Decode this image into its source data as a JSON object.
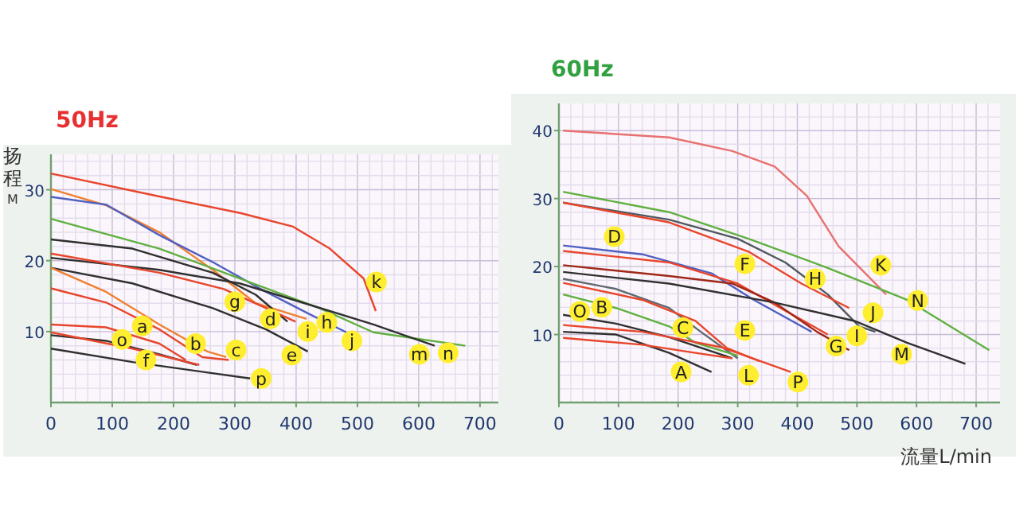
{
  "chart_data": [
    {
      "type": "line",
      "title": "50Hz",
      "ylabel": "扬程$_{M}$",
      "xlim": [
        0,
        730
      ],
      "ylim": [
        0,
        35
      ],
      "xticks": [
        0,
        100,
        200,
        300,
        400,
        500,
        600,
        700
      ],
      "yticks": [
        10,
        20,
        30
      ],
      "grid": true,
      "series": [
        {
          "color": "#e8452c",
          "x": [
            0,
            180,
            310,
            395,
            455,
            510,
            530
          ],
          "values": [
            32.3,
            29,
            26.7,
            24.8,
            21.7,
            17.5,
            12.9
          ]
        },
        {
          "color": "#f08030",
          "x": [
            0,
            90,
            177,
            264,
            334,
            417
          ],
          "values": [
            30.1,
            27.8,
            24,
            18.7,
            14,
            11.8
          ]
        },
        {
          "color": "#5060c0",
          "x": [
            0,
            90,
            177,
            264,
            351,
            421,
            482
          ],
          "values": [
            29,
            27.9,
            23.6,
            19.8,
            15.6,
            12.5,
            9.9
          ]
        },
        {
          "color": "#60b040",
          "x": [
            0,
            177,
            308,
            438,
            526,
            676
          ],
          "values": [
            25.9,
            21.7,
            17.5,
            13.3,
            9.9,
            8
          ]
        },
        {
          "color": "#303030",
          "x": [
            0,
            133,
            264,
            334,
            386
          ],
          "values": [
            23,
            21.7,
            18.3,
            15.2,
            11.4
          ]
        },
        {
          "color": "#303030",
          "x": [
            0,
            177,
            308,
            395,
            526,
            626
          ],
          "values": [
            20.4,
            18.7,
            16.8,
            14.5,
            11,
            8
          ]
        },
        {
          "color": "#e8452c",
          "x": [
            0,
            177,
            282,
            351,
            399
          ],
          "values": [
            21,
            18.3,
            16,
            13.3,
            11.4
          ]
        },
        {
          "color": "#303030",
          "x": [
            0,
            133,
            264,
            351,
            419
          ],
          "values": [
            19,
            16.8,
            13.3,
            10.3,
            7.2
          ]
        },
        {
          "color": "#e8452c",
          "x": [
            0,
            90,
            177,
            247,
            290
          ],
          "values": [
            16.1,
            14.1,
            10.3,
            6.4,
            6
          ]
        },
        {
          "color": "#f08030",
          "x": [
            0,
            90,
            177,
            255,
            286
          ],
          "values": [
            19,
            15.6,
            11,
            7.2,
            6.4
          ]
        },
        {
          "color": "#e8452c",
          "x": [
            0,
            90,
            177,
            220
          ],
          "values": [
            11,
            10.6,
            8.3,
            6
          ]
        },
        {
          "color": "#303030",
          "x": [
            0,
            90,
            177,
            238
          ],
          "values": [
            9.5,
            8.7,
            6.8,
            5.3
          ]
        },
        {
          "color": "#e8452c",
          "x": [
            0,
            133,
            242
          ],
          "values": [
            9.9,
            7.6,
            5.3
          ]
        },
        {
          "color": "#303030",
          "x": [
            0,
            133,
            325
          ],
          "values": [
            7.6,
            5.7,
            3.4
          ]
        }
      ],
      "annotations": [
        {
          "text": "a",
          "x": 149,
          "y": 10.8
        },
        {
          "text": "b",
          "x": 236,
          "y": 8.3
        },
        {
          "text": "c",
          "x": 302,
          "y": 7.4
        },
        {
          "text": "d",
          "x": 358,
          "y": 11.8
        },
        {
          "text": "e",
          "x": 393,
          "y": 6.7
        },
        {
          "text": "f",
          "x": 155,
          "y": 6
        },
        {
          "text": "g",
          "x": 300,
          "y": 14.2
        },
        {
          "text": "h",
          "x": 450,
          "y": 11.3
        },
        {
          "text": "i",
          "x": 419,
          "y": 10
        },
        {
          "text": "j",
          "x": 491,
          "y": 8.7
        },
        {
          "text": "k",
          "x": 531,
          "y": 17
        },
        {
          "text": "m",
          "x": 601,
          "y": 6.8
        },
        {
          "text": "n",
          "x": 648,
          "y": 7
        },
        {
          "text": "o",
          "x": 116,
          "y": 8.9
        },
        {
          "text": "p",
          "x": 343,
          "y": 3.4
        }
      ]
    },
    {
      "type": "line",
      "title": "60Hz",
      "xlabel": "流量L/min",
      "xlim": [
        0,
        740
      ],
      "ylim": [
        0,
        44
      ],
      "xticks": [
        0,
        100,
        200,
        300,
        400,
        500,
        600,
        700
      ],
      "yticks": [
        10,
        20,
        30,
        40
      ],
      "grid": true,
      "series": [
        {
          "color": "#e87070",
          "x": [
            7,
            185,
            291,
            362,
            416,
            469,
            549
          ],
          "values": [
            40,
            39,
            37,
            34.7,
            30.4,
            23,
            15.9
          ]
        },
        {
          "color": "#60b040",
          "x": [
            7,
            185,
            318,
            451,
            584,
            722
          ],
          "values": [
            31,
            28,
            24.1,
            19.8,
            15.1,
            7.7
          ]
        },
        {
          "color": "#505860",
          "x": [
            7,
            185,
            300,
            380,
            451,
            504,
            531
          ],
          "values": [
            29.4,
            26.9,
            24.1,
            20.6,
            15.9,
            11.2,
            10.4
          ]
        },
        {
          "color": "#e8452c",
          "x": [
            7,
            185,
            318,
            407,
            487
          ],
          "values": [
            29.4,
            26.5,
            22.2,
            17.5,
            13.9
          ]
        },
        {
          "color": "#5060c0",
          "x": [
            7,
            140,
            256,
            327,
            424
          ],
          "values": [
            23.1,
            21.8,
            19,
            15.1,
            10.4
          ]
        },
        {
          "color": "#e8452c",
          "x": [
            7,
            185,
            300,
            380,
            451
          ],
          "values": [
            22.3,
            20.6,
            17.5,
            13.5,
            10
          ]
        },
        {
          "color": "#a02818",
          "x": [
            7,
            185,
            291,
            362,
            433,
            487
          ],
          "values": [
            20.2,
            18.6,
            17.5,
            14.7,
            10.4,
            7.7
          ]
        },
        {
          "color": "#303030",
          "x": [
            7,
            185,
            362,
            496,
            584,
            682
          ],
          "values": [
            19.2,
            17.5,
            14.7,
            12,
            8.8,
            5.7
          ]
        },
        {
          "color": "#606870",
          "x": [
            7,
            96,
            185,
            238,
            300
          ],
          "values": [
            18.2,
            16.7,
            13.9,
            10.4,
            6.5
          ]
        },
        {
          "color": "#e8452c",
          "x": [
            7,
            140,
            229,
            282,
            336
          ],
          "values": [
            17.6,
            15.1,
            12,
            8,
            6.1
          ]
        },
        {
          "color": "#60b040",
          "x": [
            7,
            96,
            185,
            229,
            300
          ],
          "values": [
            15.9,
            13.9,
            11.2,
            8.8,
            6.9
          ]
        },
        {
          "color": "#303030",
          "x": [
            7,
            96,
            185,
            291
          ],
          "values": [
            12.9,
            11.6,
            9.6,
            6.5
          ]
        },
        {
          "color": "#e8452c",
          "x": [
            7,
            140,
            274,
            389
          ],
          "values": [
            11.4,
            10.4,
            8.1,
            4.5
          ]
        },
        {
          "color": "#303030",
          "x": [
            7,
            96,
            185,
            256
          ],
          "values": [
            10.4,
            10,
            7.3,
            4.5
          ]
        },
        {
          "color": "#e8452c",
          "x": [
            7,
            140,
            229,
            291
          ],
          "values": [
            9.5,
            8.5,
            7.3,
            6.5
          ]
        }
      ],
      "annotations": [
        {
          "text": "A",
          "x": 205,
          "y": 4.5
        },
        {
          "text": "B",
          "x": 72,
          "y": 14
        },
        {
          "text": "C",
          "x": 208,
          "y": 11
        },
        {
          "text": "D",
          "x": 93,
          "y": 24.4
        },
        {
          "text": "E",
          "x": 312,
          "y": 10.6
        },
        {
          "text": "F",
          "x": 312,
          "y": 20.4
        },
        {
          "text": "G",
          "x": 465,
          "y": 8.3
        },
        {
          "text": "H",
          "x": 430,
          "y": 18.2
        },
        {
          "text": "I",
          "x": 500,
          "y": 9.8
        },
        {
          "text": "J",
          "x": 527,
          "y": 13.2
        },
        {
          "text": "K",
          "x": 540,
          "y": 20.2
        },
        {
          "text": "L",
          "x": 318,
          "y": 4
        },
        {
          "text": "M",
          "x": 575,
          "y": 7.1
        },
        {
          "text": "N",
          "x": 602,
          "y": 15
        },
        {
          "text": "O",
          "x": 35,
          "y": 13.4
        },
        {
          "text": "P",
          "x": 401,
          "y": 3
        }
      ]
    }
  ]
}
